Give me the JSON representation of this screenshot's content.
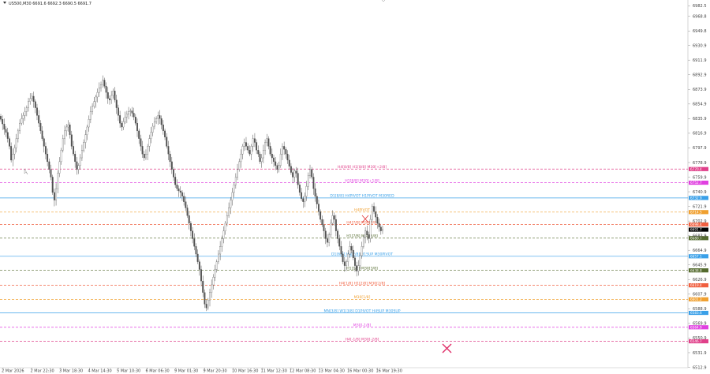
{
  "header": {
    "symbol_text": "US500,M30  6691.6 6692.3 6690.5 6691.7"
  },
  "colors": {
    "background": "#ffffff",
    "candle": "#505050",
    "marker_x": "#e0306a",
    "cursor_x": "#e03030"
  },
  "chart_data": {
    "type": "candlestick",
    "ylim": [
      6512.4,
      6990
    ],
    "yaxis": {
      "tick_values": [
        6982.5,
        6968.8,
        6949.8,
        6930.9,
        6911.9,
        6892.9,
        6873.9,
        6854.9,
        6835.9,
        6816.9,
        6797.9,
        6778.9,
        6759.9,
        6740.9,
        6721.9,
        6702.9,
        6683.9,
        6664.9,
        6645.9,
        6626.9,
        6607.9,
        6588.9,
        6569.9,
        6550.9,
        6531.9,
        6512.9
      ],
      "tick_labels": [
        "6982.5",
        "6968.8",
        "6949.8",
        "6930.9",
        "6911.9",
        "6892.9",
        "6873.9",
        "6854.9",
        "6835.9",
        "6816.9",
        "6797.9",
        "6778.9",
        "6759.9",
        "6740.9",
        "6721.9",
        "6702.9",
        "6683.9",
        "6664.9",
        "6645.9",
        "6626.9",
        "6607.9",
        "6588.9",
        "6569.9",
        "6550.9",
        "6531.9",
        "6512.9"
      ]
    },
    "xaxis": {
      "tick_labels": [
        "2 Mar 2026",
        "2 Mar 22:30",
        "3 Mar 18:30",
        "4 Mar 14:30",
        "5 Mar 10:30",
        "6 Mar 06:30",
        "9 Mar 01:30",
        "9 Mar 20:30",
        "10 Mar 16:30",
        "11 Mar 12:30",
        "12 Mar 08:30",
        "13 Mar 04:30",
        "16 Mar 00:30",
        "16 Mar 19:30"
      ]
    },
    "price_tag": {
      "value": 6691.7,
      "label": "6691.7",
      "color": "#000000"
    },
    "levels": [
      {
        "value": 6770.4,
        "label": "H4[8/8] H1[8/8] M30[+2/8]",
        "tag": "6770.4",
        "color": "#e0408a",
        "style": "dash"
      },
      {
        "value": 6752.7,
        "label": "H1[8/8] M30[+1/8]",
        "tag": "6752.7",
        "color": "#e040e0",
        "style": "dash"
      },
      {
        "value": 6732.9,
        "label": "D1[8/8] H4PIVOT H1PIVOT M30RED",
        "tag": "6732.9",
        "color": "#3aa0e8",
        "style": "solid"
      },
      {
        "value": 6714.5,
        "label": "H4PIVOT",
        "tag": "6714.5",
        "color": "#f0a030",
        "style": "dash"
      },
      {
        "value": 6698.4,
        "label": "H4[7/8] M30[6/8]",
        "tag": "6698.4",
        "color": "#f06040",
        "style": "dash"
      },
      {
        "value": 6680.7,
        "label": "H1[7/8] M30[5/8]",
        "tag": "6680.7",
        "color": "#556b2f",
        "style": "dash"
      },
      {
        "value": 6657.1,
        "label": "D1[6/8] H4[2/8] H1SUP M30PIVOT",
        "tag": "6657.1",
        "color": "#3aa0e8",
        "style": "solid"
      },
      {
        "value": 6638.8,
        "label": "H1[1/8] M30[3/8]",
        "tag": "6638.8",
        "color": "#556b2f",
        "style": "dash"
      },
      {
        "value": 6619.4,
        "label": "H4[1/8] H1[2/8] M30[2/8]",
        "tag": "6619.4",
        "color": "#f06040",
        "style": "dash"
      },
      {
        "value": 6601.2,
        "label": "M30[1/8]",
        "tag": "6601.2",
        "color": "#f0a030",
        "style": "dash"
      },
      {
        "value": 6583.6,
        "label": "MN[3/8] W1[3/8] D1PIVOT H4SUP M30SUP",
        "tag": "6583.6",
        "color": "#3aa0e8",
        "style": "solid"
      },
      {
        "value": 6564.9,
        "label": "M30[-1/8]",
        "tag": "6564.9",
        "color": "#e040e0",
        "style": "dash"
      },
      {
        "value": 6546.7,
        "label": "H4[-1/8] M30[-2/8]",
        "tag": "6546.7",
        "color": "#e0408a",
        "style": "dash"
      }
    ],
    "series": {
      "name": "",
      "close": [
        6835,
        6829,
        6822,
        6818,
        6810,
        6800,
        6782,
        6790,
        6798,
        6810,
        6820,
        6830,
        6836,
        6840,
        6845,
        6850,
        6858,
        6862,
        6865,
        6858,
        6850,
        6840,
        6830,
        6820,
        6810,
        6800,
        6790,
        6780,
        6770,
        6760,
        6740,
        6730,
        6745,
        6765,
        6780,
        6795,
        6810,
        6820,
        6825,
        6828,
        6815,
        6800,
        6790,
        6780,
        6770,
        6775,
        6785,
        6795,
        6805,
        6815,
        6825,
        6835,
        6845,
        6852,
        6858,
        6864,
        6870,
        6876,
        6880,
        6886,
        6878,
        6870,
        6862,
        6860,
        6866,
        6872,
        6860,
        6850,
        6840,
        6830,
        6825,
        6832,
        6838,
        6842,
        6845,
        6846,
        6843,
        6838,
        6830,
        6820,
        6810,
        6800,
        6790,
        6785,
        6790,
        6800,
        6810,
        6818,
        6826,
        6832,
        6836,
        6840,
        6836,
        6828,
        6820,
        6812,
        6800,
        6790,
        6780,
        6770,
        6760,
        6750,
        6745,
        6742,
        6740,
        6735,
        6728,
        6720,
        6710,
        6700,
        6690,
        6680,
        6670,
        6660,
        6650,
        6640,
        6625,
        6610,
        6595,
        6590,
        6600,
        6610,
        6620,
        6630,
        6640,
        6650,
        6660,
        6670,
        6680,
        6690,
        6700,
        6710,
        6720,
        6730,
        6740,
        6750,
        6760,
        6770,
        6780,
        6790,
        6800,
        6805,
        6800,
        6795,
        6790,
        6800,
        6810,
        6805,
        6795,
        6790,
        6780,
        6785,
        6795,
        6805,
        6810,
        6800,
        6790,
        6785,
        6780,
        6775,
        6770,
        6775,
        6790,
        6800,
        6796,
        6790,
        6782,
        6774,
        6766,
        6760,
        6768,
        6765,
        6750,
        6740,
        6732,
        6728,
        6735,
        6748,
        6762,
        6770,
        6760,
        6745,
        6735,
        6725,
        6715,
        6705,
        6698,
        6690,
        6680,
        6675,
        6685,
        6700,
        6710,
        6705,
        6690,
        6680,
        6670,
        6660,
        6650,
        6645,
        6650,
        6660,
        6670,
        6665,
        6655,
        6645,
        6638,
        6645,
        6658,
        6670,
        6682,
        6690,
        6685,
        6680,
        6705,
        6722,
        6715,
        6708,
        6700,
        6695,
        6690,
        6692
      ]
    }
  }
}
